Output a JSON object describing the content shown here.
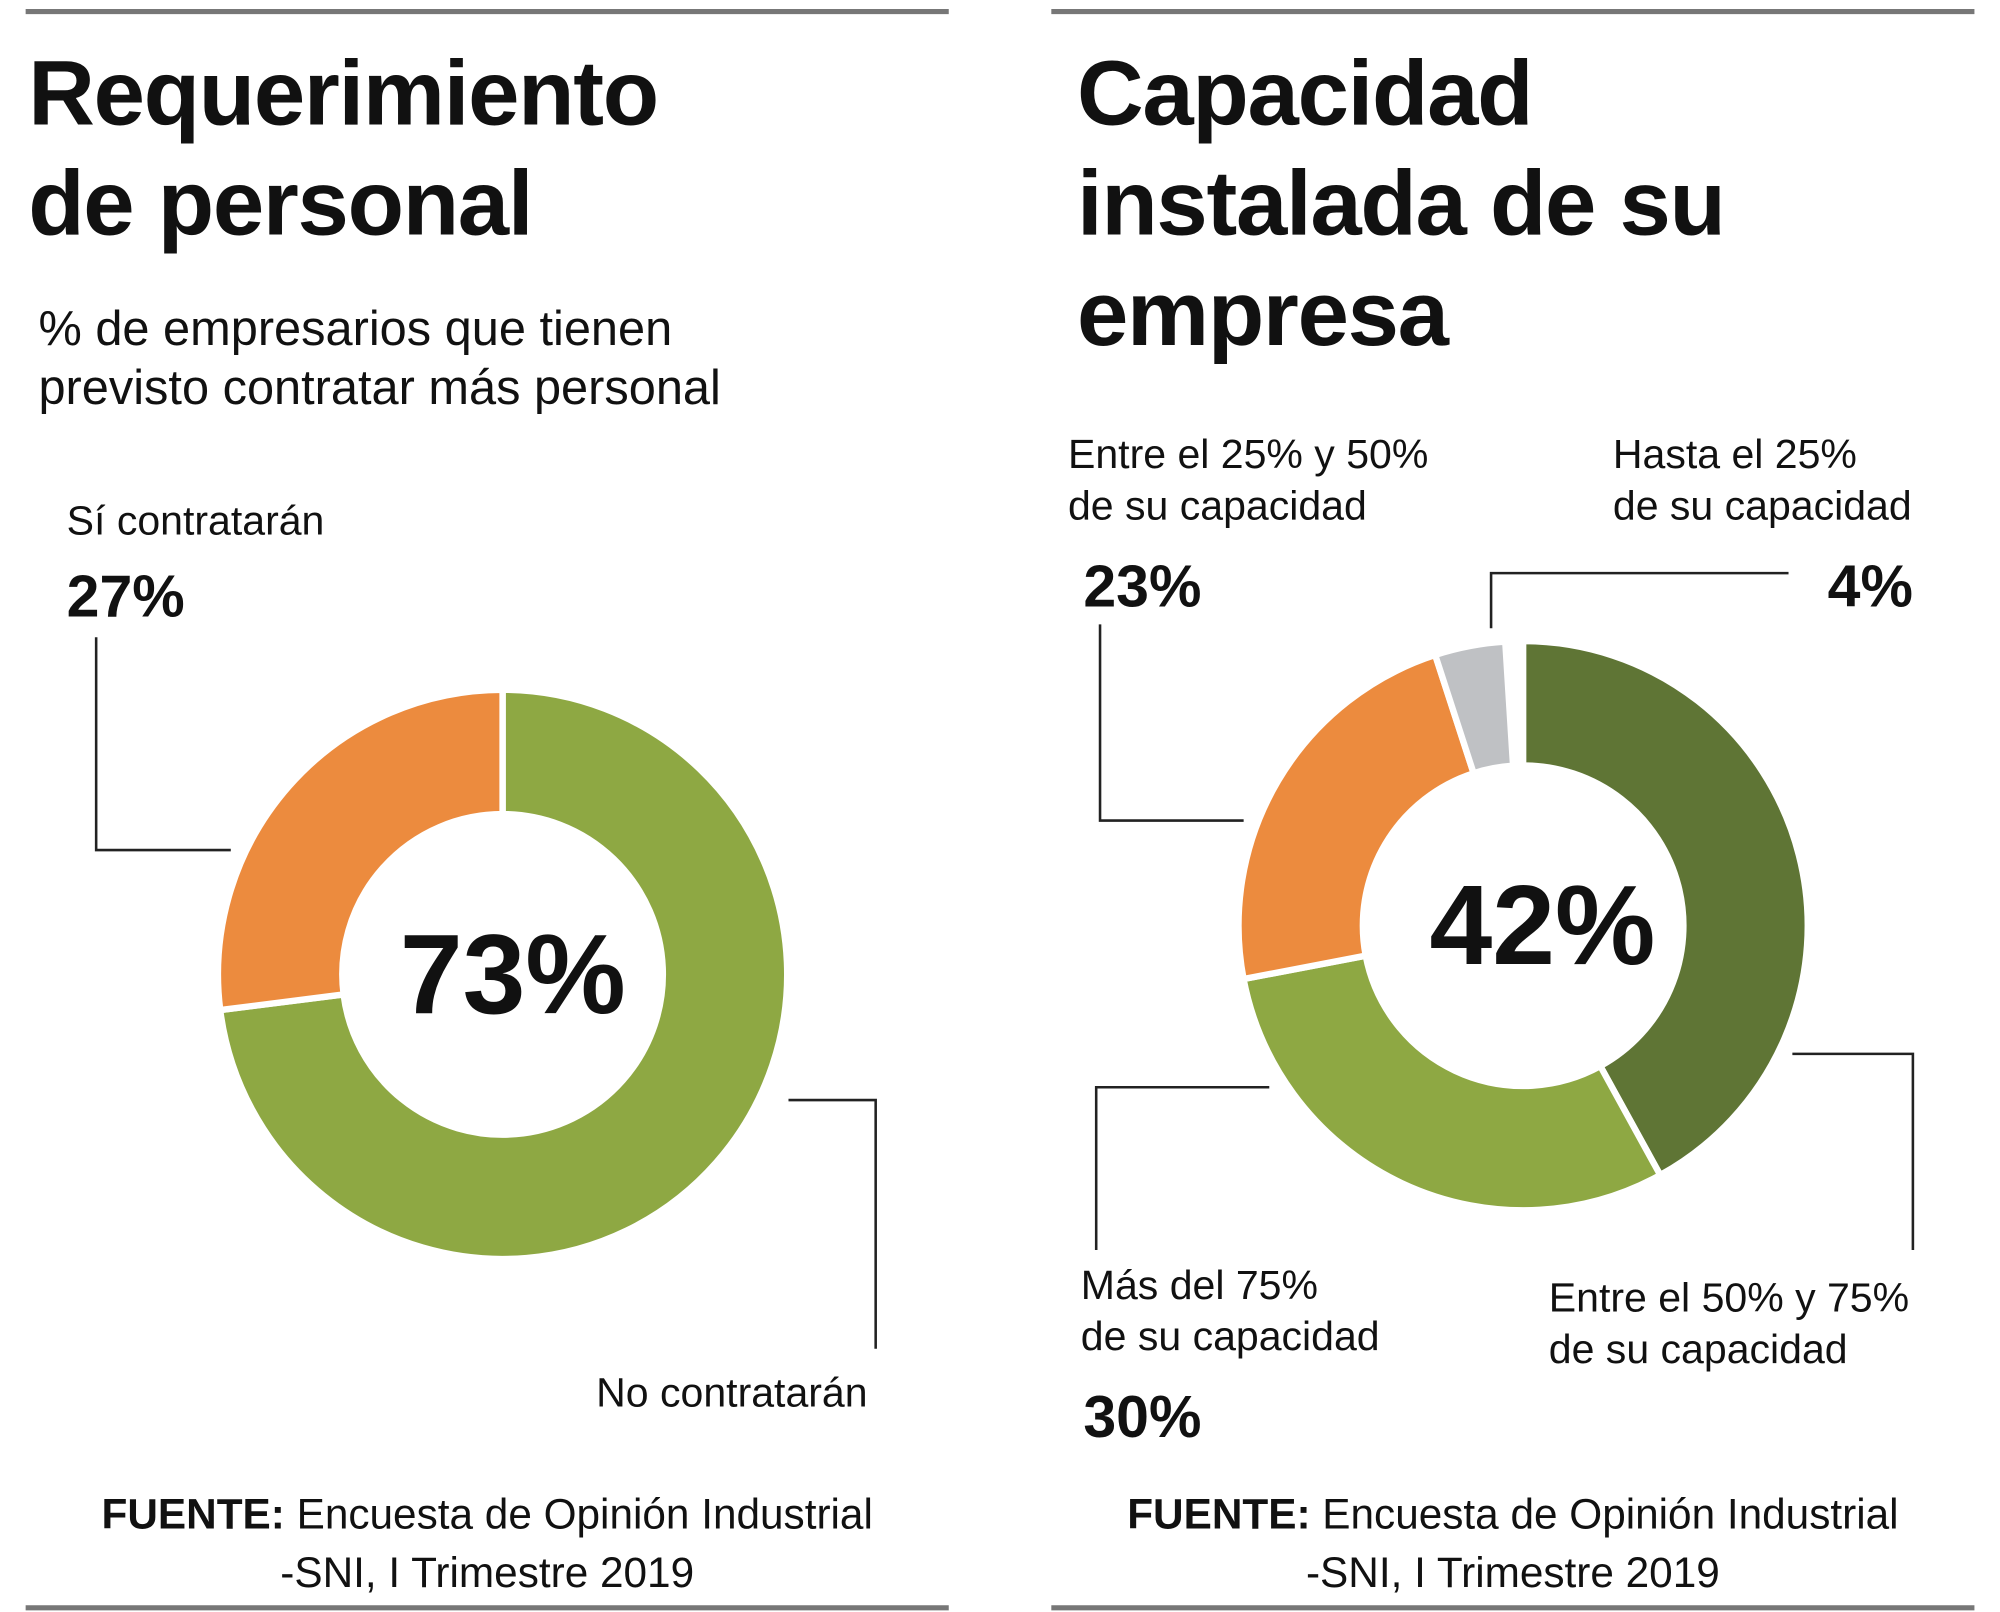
{
  "chart_data": [
    {
      "type": "donut",
      "title": "Requerimiento\nde personal",
      "subtitle": "% de empresarios que tienen\nprevisto contratar más personal",
      "categories": [
        "No contratarán",
        "Sí contratarán"
      ],
      "values": [
        73,
        27
      ],
      "value_labels": [
        "73%",
        "27%"
      ],
      "colors": [
        "#8ea843",
        "#ec8b3e"
      ],
      "source_label": "FUENTE:",
      "source": "Encuesta de Opinión Industrial\n-SNI, I Trimestre 2019"
    },
    {
      "type": "donut",
      "title": "Capacidad\ninstalada de su\nempresa",
      "categories": [
        "Entre el 50% y 75%\nde su capacidad",
        "Más del 75%\nde su capacidad",
        "Entre el 25% y 50%\nde su capacidad",
        "Hasta el 25%\nde su capacidad"
      ],
      "values": [
        42,
        30,
        23,
        4
      ],
      "value_labels": [
        "42%",
        "30%",
        "23%",
        "4%"
      ],
      "colors": [
        "#5f7535",
        "#8ea843",
        "#ec8b3e",
        "#bfc1c4"
      ],
      "source_label": "FUENTE:",
      "source": "Encuesta de Opinión Industrial\n-SNI, I Trimestre 2019"
    }
  ]
}
